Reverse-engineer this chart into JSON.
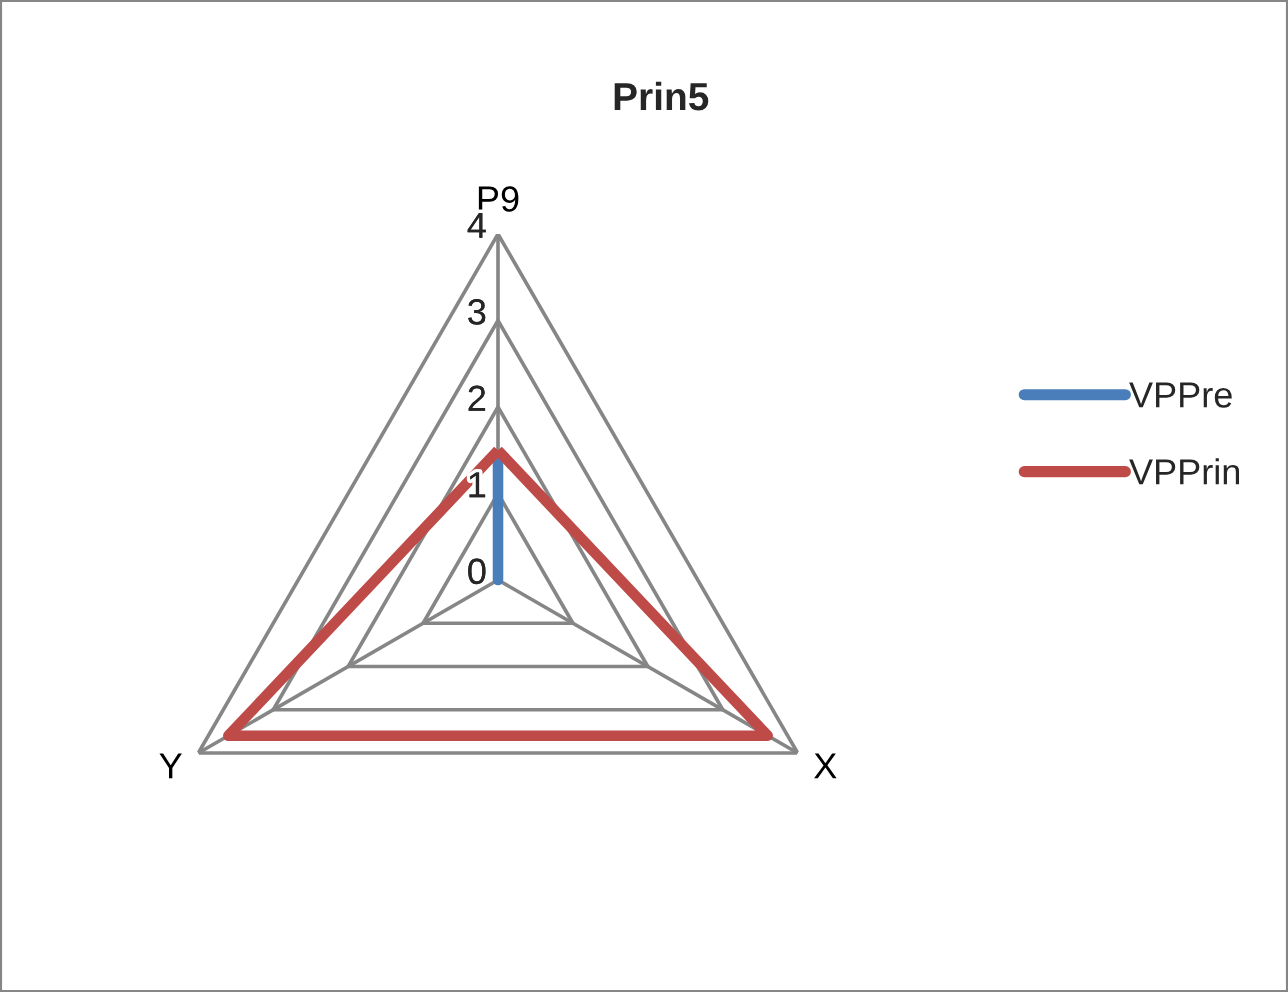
{
  "chart_data": {
    "type": "radar",
    "title": "Prin5",
    "categories": [
      "P9",
      "X",
      "Y"
    ],
    "series": [
      {
        "name": "VPPre",
        "color": "#4a7ebb",
        "values": [
          1.5,
          0,
          0
        ]
      },
      {
        "name": "VPPrin",
        "color": "#be4b48",
        "values": [
          1.5,
          3.6,
          3.6
        ]
      }
    ],
    "ylim": [
      0,
      4
    ],
    "yticks": [
      0,
      1,
      2,
      3,
      4
    ],
    "grid": true,
    "legend": "right"
  }
}
